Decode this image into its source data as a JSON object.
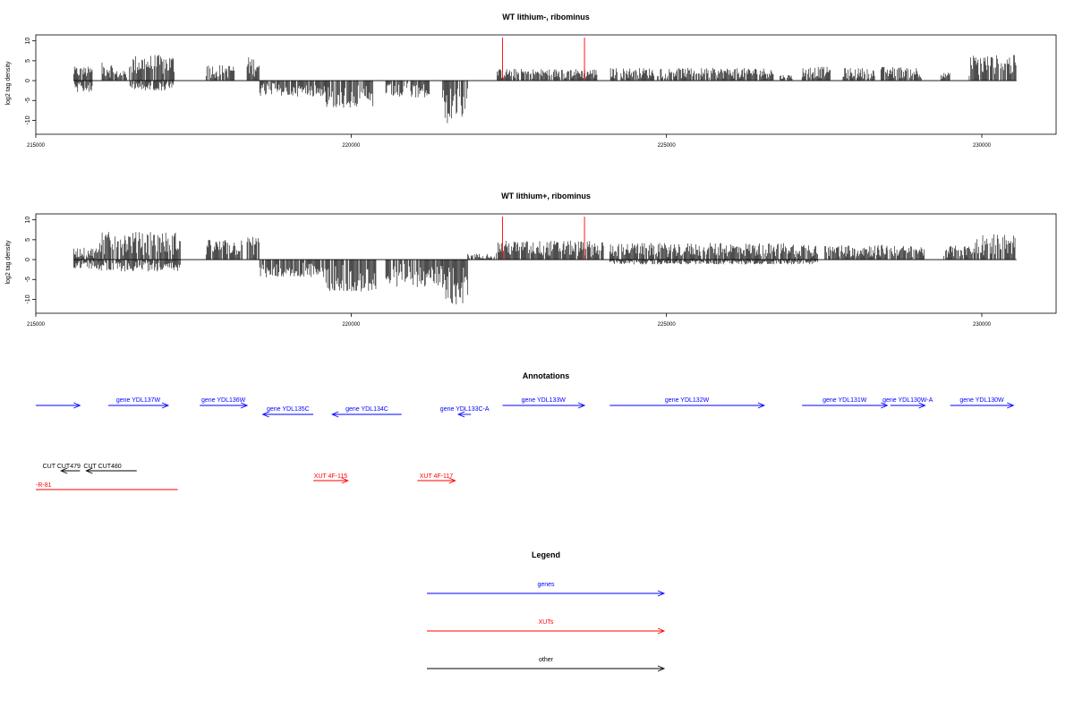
{
  "chart_data": [
    {
      "type": "bar",
      "title": "WT lithium-, ribominus",
      "ylabel": "log2 tag density",
      "xlabel": "",
      "xlim": [
        215000,
        231200
      ],
      "ylim": [
        -13.5,
        11.5
      ],
      "x_ticks": [
        215000,
        220000,
        225000,
        230000
      ],
      "y_ticks": [
        10,
        5,
        0,
        -5,
        -10
      ],
      "markers": [
        222400,
        223700
      ],
      "segments": [
        {
          "from": 215600,
          "to": 215900,
          "amp": 3.5,
          "dir": "pos"
        },
        {
          "from": 215600,
          "to": 215900,
          "amp": 3.0,
          "dir": "neg"
        },
        {
          "from": 216050,
          "to": 216250,
          "amp": 4.5,
          "dir": "pos"
        },
        {
          "from": 216250,
          "to": 216450,
          "amp": 2.5,
          "dir": "pos"
        },
        {
          "from": 216480,
          "to": 217200,
          "amp": 6.5,
          "dir": "pos"
        },
        {
          "from": 216480,
          "to": 217200,
          "amp": 2.5,
          "dir": "neg"
        },
        {
          "from": 217700,
          "to": 218150,
          "amp": 4.0,
          "dir": "pos"
        },
        {
          "from": 218350,
          "to": 218550,
          "amp": 6.0,
          "dir": "pos"
        },
        {
          "from": 218550,
          "to": 219600,
          "amp": 4.0,
          "dir": "neg"
        },
        {
          "from": 219600,
          "to": 220350,
          "amp": 7.0,
          "dir": "neg"
        },
        {
          "from": 220550,
          "to": 221250,
          "amp": 4.5,
          "dir": "neg"
        },
        {
          "from": 221450,
          "to": 221850,
          "amp": 11.0,
          "dir": "neg"
        },
        {
          "from": 222300,
          "to": 223900,
          "amp": 3.0,
          "dir": "pos"
        },
        {
          "from": 224100,
          "to": 226700,
          "amp": 3.2,
          "dir": "pos"
        },
        {
          "from": 226800,
          "to": 227000,
          "amp": 1.5,
          "dir": "pos"
        },
        {
          "from": 227150,
          "to": 227600,
          "amp": 3.5,
          "dir": "pos"
        },
        {
          "from": 227800,
          "to": 228300,
          "amp": 3.2,
          "dir": "pos"
        },
        {
          "from": 228400,
          "to": 229050,
          "amp": 3.5,
          "dir": "pos"
        },
        {
          "from": 229350,
          "to": 229500,
          "amp": 2.0,
          "dir": "pos"
        },
        {
          "from": 229800,
          "to": 230550,
          "amp": 6.5,
          "dir": "pos"
        }
      ]
    },
    {
      "type": "bar",
      "title": "WT lithium+, ribominus",
      "ylabel": "log2 tag density",
      "xlabel": "",
      "xlim": [
        215000,
        231200
      ],
      "ylim": [
        -13.5,
        11.5
      ],
      "x_ticks": [
        215000,
        220000,
        225000,
        230000
      ],
      "y_ticks": [
        10,
        5,
        0,
        -5,
        -10
      ],
      "markers": [
        222400,
        223700
      ],
      "segments": [
        {
          "from": 215600,
          "to": 216000,
          "amp": 3.0,
          "dir": "pos"
        },
        {
          "from": 215600,
          "to": 216000,
          "amp": 2.5,
          "dir": "neg"
        },
        {
          "from": 216000,
          "to": 217300,
          "amp": 7.0,
          "dir": "pos"
        },
        {
          "from": 216000,
          "to": 217300,
          "amp": 3.0,
          "dir": "neg"
        },
        {
          "from": 217700,
          "to": 218300,
          "amp": 5.0,
          "dir": "pos"
        },
        {
          "from": 218350,
          "to": 218550,
          "amp": 6.0,
          "dir": "pos"
        },
        {
          "from": 218550,
          "to": 219600,
          "amp": 4.5,
          "dir": "neg"
        },
        {
          "from": 219600,
          "to": 220400,
          "amp": 8.0,
          "dir": "neg"
        },
        {
          "from": 220550,
          "to": 221450,
          "amp": 7.0,
          "dir": "neg"
        },
        {
          "from": 221450,
          "to": 221850,
          "amp": 11.5,
          "dir": "neg"
        },
        {
          "from": 221850,
          "to": 222300,
          "amp": 1.5,
          "dir": "pos"
        },
        {
          "from": 222300,
          "to": 224000,
          "amp": 4.8,
          "dir": "pos"
        },
        {
          "from": 224100,
          "to": 227400,
          "amp": 4.2,
          "dir": "pos"
        },
        {
          "from": 224100,
          "to": 227400,
          "amp": 1.2,
          "dir": "neg"
        },
        {
          "from": 227500,
          "to": 228500,
          "amp": 3.8,
          "dir": "pos"
        },
        {
          "from": 228500,
          "to": 229100,
          "amp": 3.5,
          "dir": "pos"
        },
        {
          "from": 229400,
          "to": 229900,
          "amp": 3.5,
          "dir": "pos"
        },
        {
          "from": 229900,
          "to": 230550,
          "amp": 6.5,
          "dir": "pos"
        }
      ]
    }
  ],
  "annotations": {
    "title": "Annotations",
    "genes": [
      {
        "label": "",
        "start": 215000,
        "end": 215700,
        "strand": "+"
      },
      {
        "label": "gene YDL137W",
        "start": 216150,
        "end": 217100,
        "strand": "+"
      },
      {
        "label": "gene YDL136W",
        "start": 217600,
        "end": 218350,
        "strand": "+"
      },
      {
        "label": "gene YDL135C",
        "start": 218600,
        "end": 219400,
        "strand": "-"
      },
      {
        "label": "gene YDL134C",
        "start": 219700,
        "end": 220800,
        "strand": "-"
      },
      {
        "label": "gene YDL133C-A",
        "start": 221700,
        "end": 221900,
        "strand": "-"
      },
      {
        "label": "gene YDL133W",
        "start": 222400,
        "end": 223700,
        "strand": "+"
      },
      {
        "label": "gene YDL132W",
        "start": 224100,
        "end": 226550,
        "strand": "+"
      },
      {
        "label": "gene YDL131W",
        "start": 227150,
        "end": 228500,
        "strand": "+"
      },
      {
        "label": "gene YDL130W-A",
        "start": 228550,
        "end": 229100,
        "strand": "+"
      },
      {
        "label": "gene YDL130W",
        "start": 229500,
        "end": 230500,
        "strand": "+"
      }
    ],
    "xuts": [
      {
        "label": "XUT 4F-115",
        "start": 219400,
        "end": 219950,
        "strand": "+"
      },
      {
        "label": "XUT 4F-117",
        "start": 221050,
        "end": 221650,
        "strand": "+"
      }
    ],
    "others": [
      {
        "label": "CUT CUT479",
        "start": 215400,
        "end": 215700,
        "strand": "-"
      },
      {
        "label": "CUT CUT480",
        "start": 215800,
        "end": 216600,
        "strand": "-"
      }
    ],
    "other_red": {
      "label": "-R-81",
      "start": 215000,
      "end": 217250
    }
  },
  "legend": {
    "title": "Legend",
    "items": [
      {
        "label": "genes",
        "color": "#0000ff"
      },
      {
        "label": "XUTs",
        "color": "#ff0000"
      },
      {
        "label": "other",
        "color": "#000000"
      }
    ]
  },
  "colors": {
    "gene": "#0000ff",
    "xut": "#ff0000",
    "other": "#000000",
    "marker": "#ff0000",
    "bars": "#000000"
  }
}
